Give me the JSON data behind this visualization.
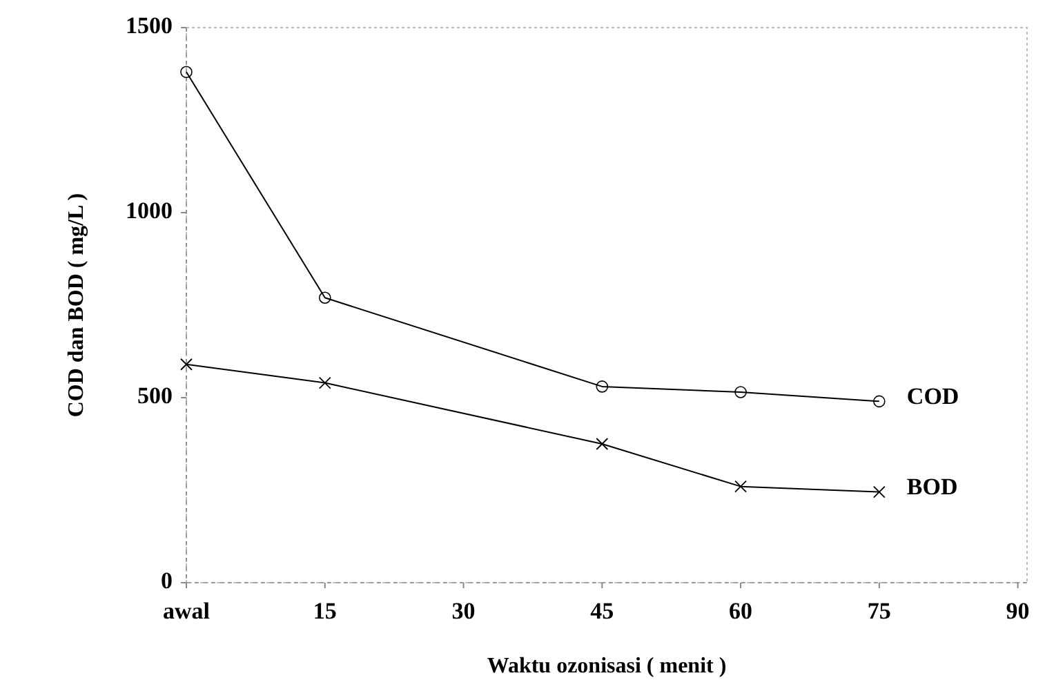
{
  "chart_data": {
    "type": "line",
    "xlabel": "Waktu ozonisasi ( menit )",
    "ylabel": "COD dan BOD ( mg/L )",
    "x": [
      0,
      15,
      45,
      60,
      75
    ],
    "xlim": [
      0,
      91
    ],
    "xticks": [
      {
        "value": 0,
        "label": "awal"
      },
      15,
      30,
      45,
      60,
      75,
      90
    ],
    "ylim": [
      0,
      1500
    ],
    "yticks": [
      0,
      500,
      1000,
      1500
    ],
    "series": [
      {
        "name": "COD",
        "color": "#000000",
        "marker": "circle",
        "values": [
          1380,
          770,
          530,
          515,
          490
        ]
      },
      {
        "name": "BOD",
        "color": "#000000",
        "marker": "cross",
        "values": [
          590,
          540,
          375,
          260,
          245
        ]
      }
    ],
    "grid": false
  }
}
